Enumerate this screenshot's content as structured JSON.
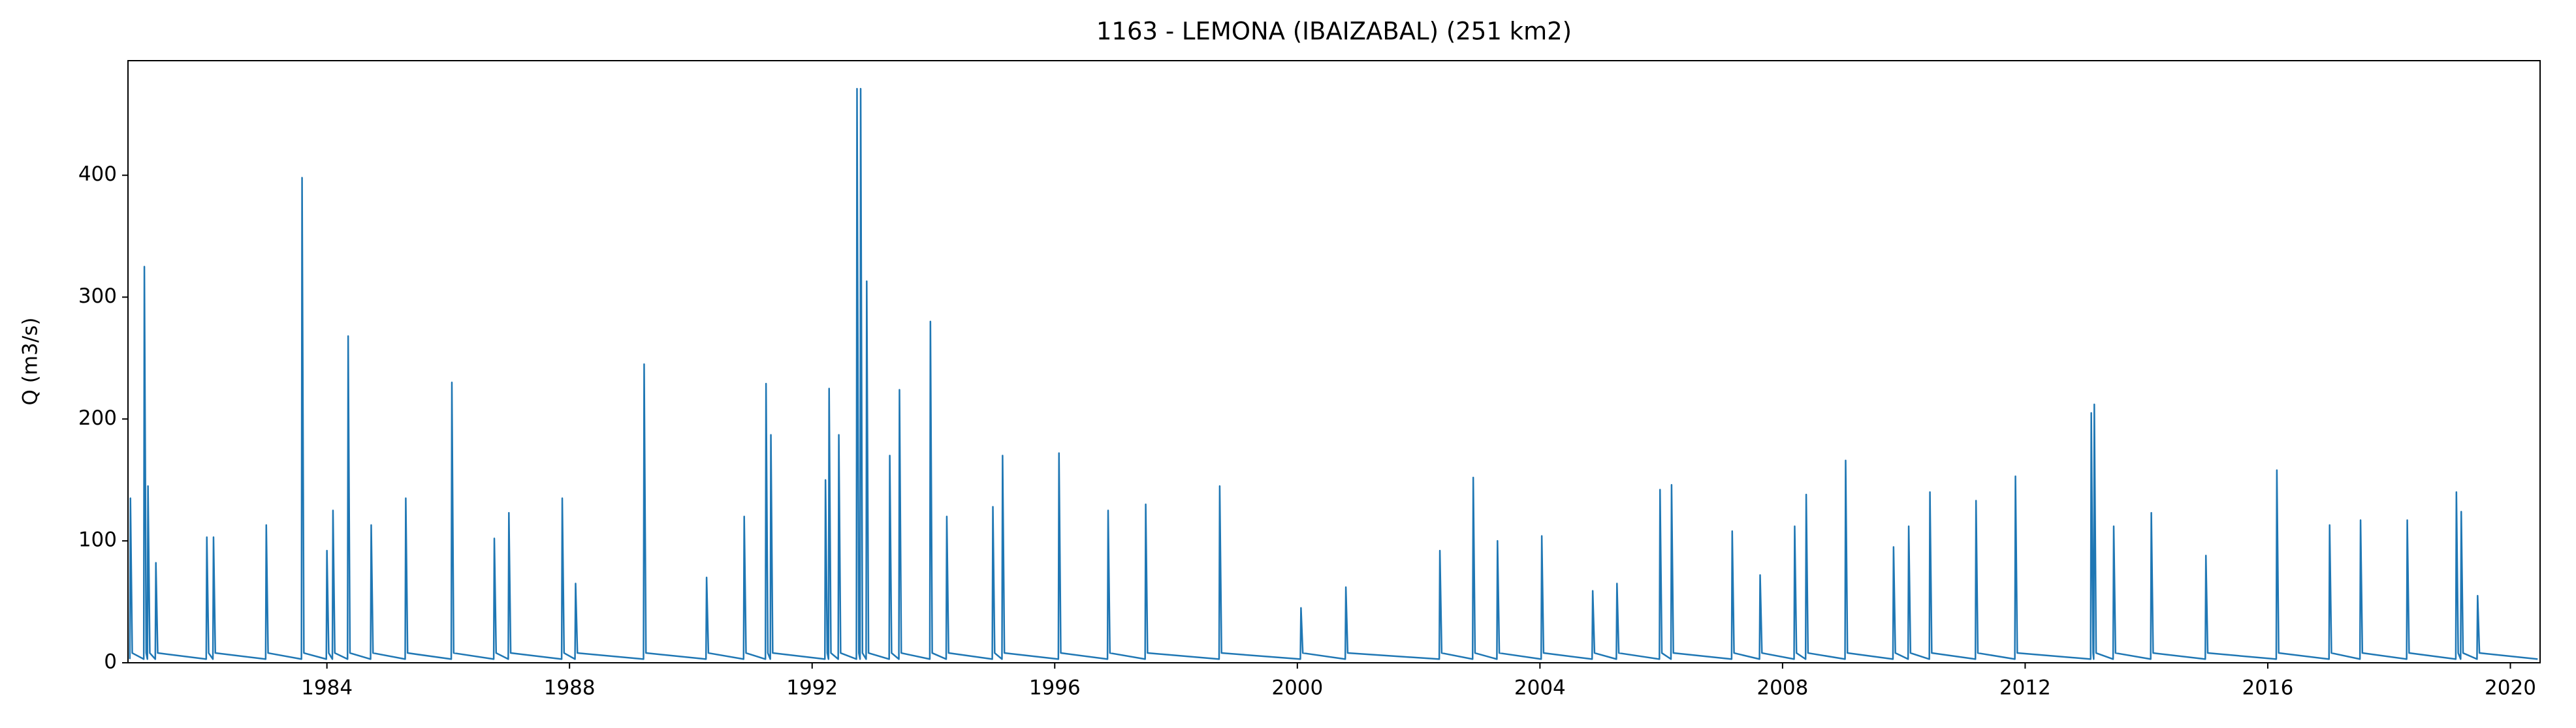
{
  "chart_data": {
    "type": "line",
    "title": "1163 - LEMONA (IBAIZABAL) (251 km2)",
    "y_label": "Q (m3/s)",
    "xlim": [
      1980.72,
      2020.49
    ],
    "ylim": [
      0,
      494
    ],
    "xticks": [
      1984,
      1988,
      1992,
      1996,
      2000,
      2004,
      2008,
      2012,
      2016,
      2020
    ],
    "yticks": [
      0,
      100,
      200,
      300,
      400
    ],
    "series": [
      {
        "color": "#1f77b4",
        "x": [
          1980.75,
          1980.76,
          1980.79,
          1980.98,
          1980.99,
          1981.02,
          1981.04,
          1981.05,
          1981.08,
          1981.17,
          1981.18,
          1981.21,
          1982.01,
          1982.02,
          1982.05,
          1982.12,
          1982.13,
          1982.16,
          1982.99,
          1983.0,
          1983.03,
          1983.58,
          1983.59,
          1983.62,
          1983.99,
          1984.0,
          1984.03,
          1984.09,
          1984.1,
          1984.13,
          1984.34,
          1984.35,
          1984.38,
          1984.72,
          1984.73,
          1984.76,
          1985.29,
          1985.3,
          1985.33,
          1986.05,
          1986.06,
          1986.09,
          1986.75,
          1986.76,
          1986.79,
          1986.99,
          1987.0,
          1987.03,
          1987.87,
          1987.88,
          1987.91,
          1988.09,
          1988.1,
          1988.13,
          1989.22,
          1989.23,
          1989.26,
          1990.25,
          1990.26,
          1990.29,
          1990.87,
          1990.88,
          1990.91,
          1991.23,
          1991.24,
          1991.27,
          1991.31,
          1991.32,
          1991.35,
          1992.21,
          1992.22,
          1992.25,
          1992.27,
          1992.28,
          1992.31,
          1992.43,
          1992.44,
          1992.47,
          1992.73,
          1992.74,
          1992.77,
          1992.79,
          1992.8,
          1992.83,
          1992.89,
          1992.9,
          1992.93,
          1993.27,
          1993.28,
          1993.31,
          1993.43,
          1993.44,
          1993.47,
          1993.94,
          1993.95,
          1993.98,
          1994.21,
          1994.22,
          1994.25,
          1994.97,
          1994.98,
          1995.01,
          1995.13,
          1995.14,
          1995.17,
          1996.06,
          1996.07,
          1996.1,
          1996.87,
          1996.88,
          1996.91,
          1997.49,
          1997.5,
          1997.53,
          1998.71,
          1998.72,
          1998.75,
          2000.05,
          2000.06,
          2000.09,
          2000.79,
          2000.8,
          2000.83,
          2002.34,
          2002.35,
          2002.38,
          2002.89,
          2002.9,
          2002.93,
          2003.29,
          2003.3,
          2003.33,
          2004.02,
          2004.03,
          2004.06,
          2004.86,
          2004.87,
          2004.9,
          2005.26,
          2005.27,
          2005.3,
          2005.97,
          2005.98,
          2006.01,
          2006.16,
          2006.17,
          2006.2,
          2007.16,
          2007.17,
          2007.2,
          2007.62,
          2007.63,
          2007.66,
          2008.19,
          2008.2,
          2008.23,
          2008.38,
          2008.39,
          2008.42,
          2009.03,
          2009.04,
          2009.07,
          2009.82,
          2009.83,
          2009.86,
          2010.07,
          2010.08,
          2010.11,
          2010.42,
          2010.43,
          2010.46,
          2011.18,
          2011.19,
          2011.22,
          2011.83,
          2011.84,
          2011.87,
          2013.08,
          2013.09,
          2013.12,
          2013.13,
          2013.14,
          2013.17,
          2013.45,
          2013.46,
          2013.49,
          2014.07,
          2014.08,
          2014.11,
          2014.97,
          2014.98,
          2015.01,
          2016.14,
          2016.15,
          2016.18,
          2017.01,
          2017.02,
          2017.05,
          2017.52,
          2017.53,
          2017.56,
          2018.29,
          2018.3,
          2018.33,
          2019.1,
          2019.11,
          2019.14,
          2019.18,
          2019.19,
          2019.22,
          2019.45,
          2019.46,
          2019.49,
          2020.45
        ],
        "values": [
          3,
          135,
          8,
          3,
          325,
          8,
          3,
          145,
          8,
          3,
          82,
          8,
          3,
          103,
          8,
          3,
          103,
          8,
          3,
          113,
          8,
          3,
          398,
          8,
          3,
          92,
          8,
          3,
          125,
          8,
          3,
          268,
          8,
          3,
          113,
          8,
          3,
          135,
          8,
          3,
          230,
          8,
          3,
          102,
          8,
          3,
          123,
          8,
          3,
          135,
          8,
          3,
          65,
          8,
          3,
          245,
          8,
          3,
          70,
          8,
          3,
          120,
          8,
          3,
          229,
          8,
          3,
          187,
          8,
          3,
          150,
          8,
          3,
          225,
          8,
          3,
          187,
          8,
          3,
          471,
          8,
          3,
          471,
          8,
          3,
          313,
          8,
          3,
          170,
          8,
          3,
          224,
          8,
          3,
          280,
          8,
          3,
          120,
          8,
          3,
          128,
          8,
          3,
          170,
          8,
          3,
          172,
          8,
          3,
          125,
          8,
          3,
          130,
          8,
          3,
          145,
          8,
          3,
          45,
          8,
          3,
          62,
          8,
          3,
          92,
          8,
          3,
          152,
          8,
          3,
          100,
          8,
          3,
          104,
          8,
          3,
          59,
          8,
          3,
          65,
          8,
          3,
          142,
          8,
          3,
          146,
          8,
          3,
          108,
          8,
          3,
          72,
          8,
          3,
          112,
          8,
          3,
          138,
          8,
          3,
          166,
          8,
          3,
          95,
          8,
          3,
          112,
          8,
          3,
          140,
          8,
          3,
          133,
          8,
          3,
          153,
          8,
          3,
          205,
          8,
          3,
          212,
          8,
          3,
          112,
          8,
          3,
          123,
          8,
          3,
          88,
          8,
          3,
          158,
          8,
          3,
          113,
          8,
          3,
          117,
          8,
          3,
          117,
          8,
          3,
          140,
          8,
          3,
          124,
          8,
          3,
          55,
          8,
          3
        ]
      }
    ]
  }
}
